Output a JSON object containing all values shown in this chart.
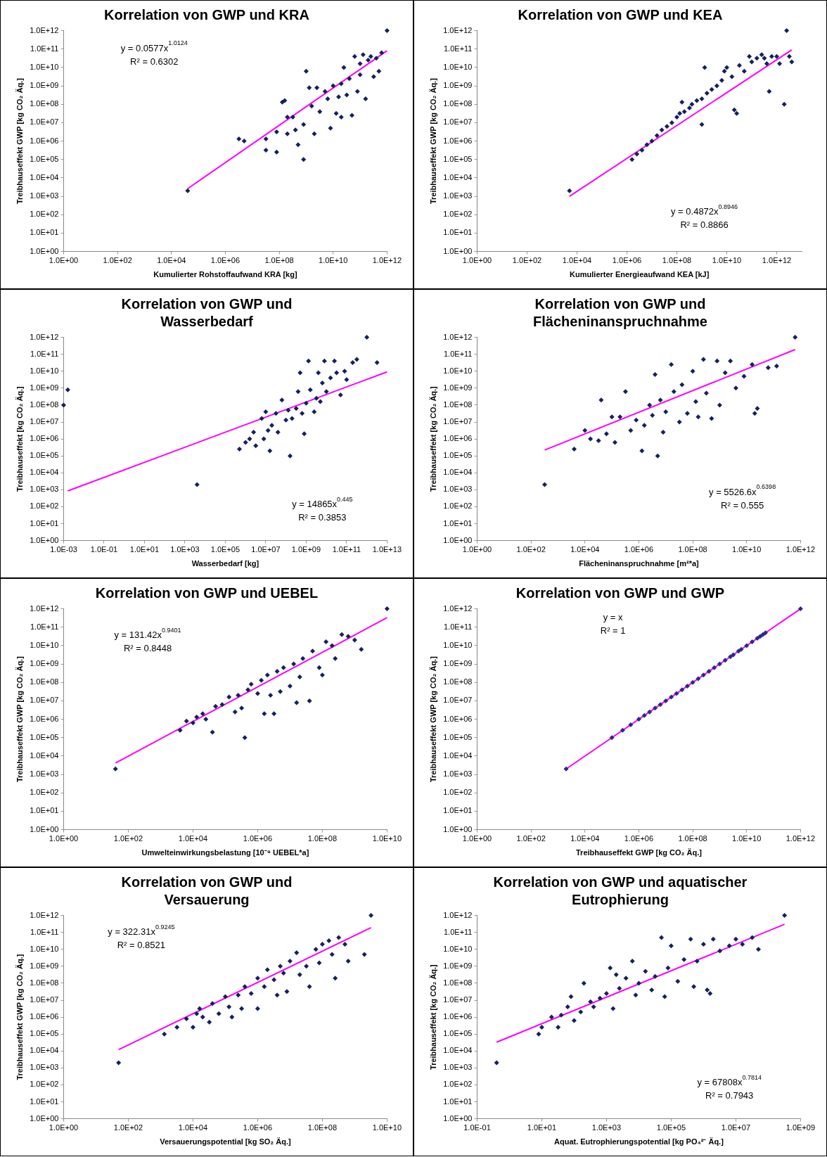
{
  "chart_data": [
    {
      "type": "scatter",
      "title": "Korrelation von GWP und KRA",
      "xlabel": "Kumulierter Rohstoffaufwand KRA [kg]",
      "ylabel": "Treibhauseffekt GWP [kg CO₂ Äq.]",
      "log": "xy",
      "marker": "diamond",
      "xlim": [
        1,
        1000000000000.0
      ],
      "ylim": [
        1,
        1000000000000.0
      ],
      "xticks": [
        {
          "value": 1,
          "label": "1.0E+00"
        },
        {
          "value": 100,
          "label": "1.0E+02"
        },
        {
          "value": 10000.0,
          "label": "1.0E+04"
        },
        {
          "value": 1000000.0,
          "label": "1.0E+06"
        },
        {
          "value": 100000000.0,
          "label": "1.0E+08"
        },
        {
          "value": 10000000000.0,
          "label": "1.0E+10"
        },
        {
          "value": 1000000000000.0,
          "label": "1.0E+12"
        }
      ],
      "yticks": [
        {
          "value": 1,
          "label": "1.0E+00"
        },
        {
          "value": 10,
          "label": "1.0E+01"
        },
        {
          "value": 100,
          "label": "1.0E+02"
        },
        {
          "value": 1000.0,
          "label": "1.0E+03"
        },
        {
          "value": 10000.0,
          "label": "1.0E+04"
        },
        {
          "value": 100000.0,
          "label": "1.0E+05"
        },
        {
          "value": 1000000.0,
          "label": "1.0E+06"
        },
        {
          "value": 10000000.0,
          "label": "1.0E+07"
        },
        {
          "value": 100000000.0,
          "label": "1.0E+08"
        },
        {
          "value": 1000000000.0,
          "label": "1.0E+09"
        },
        {
          "value": 10000000000.0,
          "label": "1.0E+10"
        },
        {
          "value": 100000000000.0,
          "label": "1.0E+11"
        },
        {
          "value": 1000000000000.0,
          "label": "1.0E+12"
        }
      ],
      "annotations": [
        "y = 0.0577x$^{1.0124}$",
        "R² = 0.6302"
      ],
      "series": [
        {
          "type": "scatter",
          "color": "#14215e",
          "x": [
            40000.0,
            3200000.0,
            5000000.0,
            32000000.0,
            32000000.0,
            80000000.0,
            80000000.0,
            130000000.0,
            160000000.0,
            200000000.0,
            200000000.0,
            320000000.0,
            400000000.0,
            500000000.0,
            800000000.0,
            800000000.0,
            1000000000.0,
            1300000000.0,
            1600000000.0,
            2000000000.0,
            2500000000.0,
            3200000000.0,
            5000000000.0,
            6300000000.0,
            8000000000.0,
            10000000000.0,
            13000000000.0,
            16000000000.0,
            20000000000.0,
            20000000000.0,
            25000000000.0,
            32000000000.0,
            40000000000.0,
            50000000000.0,
            63000000000.0,
            80000000000.0,
            100000000000.0,
            100000000000.0,
            130000000000.0,
            160000000000.0,
            200000000000.0,
            250000000000.0,
            320000000000.0,
            400000000000.0,
            500000000000.0,
            630000000000.0,
            1000000000000.0
          ],
          "values": [
            2000.0,
            1300000.0,
            1000000.0,
            320000.0,
            1300000.0,
            250000.0,
            3200000.0,
            130000000.0,
            160000000.0,
            20000000.0,
            2500000.0,
            20000000.0,
            4000000.0,
            630000.0,
            100000.0,
            8000000.0,
            6300000000.0,
            800000000.0,
            80000000.0,
            2500000.0,
            800000000.0,
            40000000.0,
            500000000.0,
            200000000.0,
            5000000.0,
            1000000000.0,
            32000000.0,
            250000000.0,
            1300000000.0,
            20000000.0,
            10000000000.0,
            320000000.0,
            2500000000.0,
            25000000.0,
            40000000000.0,
            500000000.0,
            4000000000.0,
            16000000000.0,
            50000000000.0,
            200000000.0,
            25000000000.0,
            40000000000.0,
            3200000000.0,
            32000000000.0,
            6300000000.0,
            63000000000.0,
            1000000000000.0
          ]
        },
        {
          "type": "line",
          "color": "#ff00ff",
          "marker": "none",
          "x": [
            40000.0,
            1000000000000.0
          ],
          "values": [
            2600.0,
            81000000000.0
          ]
        }
      ]
    },
    {
      "type": "scatter",
      "title": "Korrelation von GWP und KEA",
      "xlabel": "Kumulierter Energieaufwand KEA [kJ]",
      "ylabel": "Treibhauseffekt GWP [kg CO₂ Äq.]",
      "log": "xy",
      "marker": "diamond",
      "xlim": [
        1,
        10000000000000.0
      ],
      "ylim": [
        1,
        1000000000000.0
      ],
      "xticks": [
        {
          "value": 1,
          "label": "1.0E+00"
        },
        {
          "value": 100,
          "label": "1.0E+02"
        },
        {
          "value": 10000.0,
          "label": "1.0E+04"
        },
        {
          "value": 1000000.0,
          "label": "1.0E+06"
        },
        {
          "value": 100000000.0,
          "label": "1.0E+08"
        },
        {
          "value": 10000000000.0,
          "label": "1.0E+10"
        },
        {
          "value": 1000000000000.0,
          "label": "1.0E+12"
        }
      ],
      "yticks": [
        {
          "value": 1,
          "label": "1.0E+00"
        },
        {
          "value": 10,
          "label": "1.0E+01"
        },
        {
          "value": 100,
          "label": "1.0E+02"
        },
        {
          "value": 1000.0,
          "label": "1.0E+03"
        },
        {
          "value": 10000.0,
          "label": "1.0E+04"
        },
        {
          "value": 100000.0,
          "label": "1.0E+05"
        },
        {
          "value": 1000000.0,
          "label": "1.0E+06"
        },
        {
          "value": 10000000.0,
          "label": "1.0E+07"
        },
        {
          "value": 100000000.0,
          "label": "1.0E+08"
        },
        {
          "value": 1000000000.0,
          "label": "1.0E+09"
        },
        {
          "value": 10000000000.0,
          "label": "1.0E+10"
        },
        {
          "value": 100000000000.0,
          "label": "1.0E+11"
        },
        {
          "value": 1000000000000.0,
          "label": "1.0E+12"
        }
      ],
      "annotations": [
        "y = 0.4872x$^{0.8946}$",
        "R² = 0.8866"
      ],
      "series": [
        {
          "type": "scatter",
          "color": "#14215e",
          "x": [
            5000.0,
            1600000.0,
            2500000.0,
            4000000.0,
            6300000.0,
            10000000.0,
            16000000.0,
            25000000.0,
            40000000.0,
            63000000.0,
            100000000.0,
            130000000.0,
            160000000.0,
            200000000.0,
            320000000.0,
            400000000.0,
            630000000.0,
            1000000000.0,
            1000000000.0,
            1300000000.0,
            1600000000.0,
            2500000000.0,
            4000000000.0,
            6300000000.0,
            8000000000.0,
            10000000000.0,
            16000000000.0,
            20000000000.0,
            25000000000.0,
            32000000000.0,
            50000000000.0,
            80000000000.0,
            100000000000.0,
            160000000000.0,
            250000000000.0,
            320000000000.0,
            400000000000.0,
            500000000000.0,
            630000000000.0,
            1000000000000.0,
            1300000000000.0,
            2000000000000.0,
            2500000000000.0,
            3200000000000.0,
            4000000000000.0
          ],
          "values": [
            2000.0,
            100000.0,
            200000.0,
            320000.0,
            630000.0,
            1000000.0,
            2000000.0,
            4000000.0,
            6300000.0,
            10000000.0,
            20000000.0,
            32000000.0,
            130000000.0,
            40000000.0,
            63000000.0,
            100000000.0,
            160000000.0,
            8000000.0,
            200000000.0,
            10000000000.0,
            400000000.0,
            630000000.0,
            1000000000.0,
            2000000000.0,
            6300000000.0,
            10000000000.0,
            3200000000.0,
            50000000.0,
            32000000.0,
            13000000000.0,
            6300000000.0,
            40000000000.0,
            20000000000.0,
            32000000000.0,
            50000000000.0,
            32000000000.0,
            16000000000.0,
            500000000.0,
            40000000000.0,
            40000000000.0,
            16000000000.0,
            100000000.0,
            1000000000000.0,
            40000000000.0,
            20000000000.0
          ]
        },
        {
          "type": "line",
          "color": "#ff00ff",
          "marker": "none",
          "x": [
            5000.0,
            4000000000000.0
          ],
          "values": [
            1000.0,
            91000000000.0
          ]
        }
      ]
    },
    {
      "type": "scatter",
      "title": "Korrelation von GWP und Wasserbedarf",
      "xlabel": "Wasserbedarf [kg]",
      "ylabel": "Treibhauseffekt [kg CO₂ Äq.]",
      "log": "xy",
      "marker": "diamond",
      "xlim": [
        0.001,
        10000000000000.0
      ],
      "ylim": [
        1,
        1000000000000.0
      ],
      "xticks": [
        {
          "value": 0.001,
          "label": "1.0E-03"
        },
        {
          "value": 0.1,
          "label": "1.0E-01"
        },
        {
          "value": 10,
          "label": "1.0E+01"
        },
        {
          "value": 1000.0,
          "label": "1.0E+03"
        },
        {
          "value": 100000.0,
          "label": "1.0E+05"
        },
        {
          "value": 10000000.0,
          "label": "1.0E+07"
        },
        {
          "value": 1000000000.0,
          "label": "1.0E+09"
        },
        {
          "value": 100000000000.0,
          "label": "1.0E+11"
        },
        {
          "value": 10000000000000.0,
          "label": "1.0E+13"
        }
      ],
      "yticks": [
        {
          "value": 1,
          "label": "1.0E+00"
        },
        {
          "value": 10,
          "label": "1.0E+01"
        },
        {
          "value": 100,
          "label": "1.0E+02"
        },
        {
          "value": 1000.0,
          "label": "1.0E+03"
        },
        {
          "value": 10000.0,
          "label": "1.0E+04"
        },
        {
          "value": 100000.0,
          "label": "1.0E+05"
        },
        {
          "value": 1000000.0,
          "label": "1.0E+06"
        },
        {
          "value": 10000000.0,
          "label": "1.0E+07"
        },
        {
          "value": 100000000.0,
          "label": "1.0E+08"
        },
        {
          "value": 1000000000.0,
          "label": "1.0E+09"
        },
        {
          "value": 10000000000.0,
          "label": "1.0E+10"
        },
        {
          "value": 100000000000.0,
          "label": "1.0E+11"
        },
        {
          "value": 1000000000000.0,
          "label": "1.0E+12"
        }
      ],
      "annotations": [
        "y = 14865x$^{0.445}$",
        "R² = 0.3853"
      ],
      "series": [
        {
          "type": "scatter",
          "color": "#14215e",
          "x": [
            0.001,
            0.0016,
            4000.0,
            500000.0,
            1000000.0,
            1600000.0,
            2500000.0,
            3200000.0,
            6300000.0,
            8000000.0,
            10000000.0,
            13000000.0,
            16000000.0,
            20000000.0,
            32000000.0,
            40000000.0,
            63000000.0,
            100000000.0,
            130000000.0,
            160000000.0,
            200000000.0,
            320000000.0,
            400000000.0,
            500000000.0,
            630000000.0,
            800000000.0,
            1000000000.0,
            1300000000.0,
            1600000000.0,
            2500000000.0,
            3200000000.0,
            4000000000.0,
            5000000000.0,
            6300000000.0,
            8000000000.0,
            10000000000.0,
            16000000000.0,
            25000000000.0,
            32000000000.0,
            50000000000.0,
            80000000000.0,
            100000000000.0,
            200000000000.0,
            320000000000.0,
            1000000000000.0,
            3200000000000.0
          ],
          "values": [
            100000000.0,
            800000000.0,
            2000.0,
            250000.0,
            630000.0,
            1000000.0,
            2500000.0,
            400000.0,
            16000000.0,
            1000000.0,
            40000000.0,
            3200000.0,
            200000.0,
            6300000.0,
            32000000.0,
            2500000.0,
            200000000.0,
            13000000.0,
            50000000.0,
            100000.0,
            16000000.0,
            63000000.0,
            630000000.0,
            8000000000.0,
            32000000.0,
            2000000.0,
            130000000.0,
            40000000000.0,
            800000000.0,
            40000000.0,
            250000000.0,
            8000000000.0,
            160000000.0,
            2000000000.0,
            40000000000.0,
            630000000.0,
            4000000000.0,
            40000000000.0,
            8000000000.0,
            400000000.0,
            10000000000.0,
            3200000000.0,
            32000000000.0,
            50000000000.0,
            1000000000000.0,
            32000000000.0
          ]
        },
        {
          "type": "line",
          "color": "#ff00ff",
          "marker": "none",
          "x": [
            0.0016,
            10000000000000.0
          ],
          "values": [
            850,
            9100000000.0
          ]
        }
      ]
    },
    {
      "type": "scatter",
      "title": "Korrelation von GWP und Flächeninanspruchnahme",
      "xlabel": "Flächeninanspruchnahme [m²*a]",
      "ylabel": "Treibhauseffekt [kg CO₂ Äq.]",
      "log": "xy",
      "marker": "diamond",
      "xlim": [
        1,
        1000000000000.0
      ],
      "ylim": [
        1,
        1000000000000.0
      ],
      "xticks": [
        {
          "value": 1,
          "label": "1.0E+00"
        },
        {
          "value": 100,
          "label": "1.0E+02"
        },
        {
          "value": 10000.0,
          "label": "1.0E+04"
        },
        {
          "value": 1000000.0,
          "label": "1.0E+06"
        },
        {
          "value": 100000000.0,
          "label": "1.0E+08"
        },
        {
          "value": 10000000000.0,
          "label": "1.0E+10"
        },
        {
          "value": 1000000000000.0,
          "label": "1.0E+12"
        }
      ],
      "yticks": [
        {
          "value": 1,
          "label": "1.0E+00"
        },
        {
          "value": 10,
          "label": "1.0E+01"
        },
        {
          "value": 100,
          "label": "1.0E+02"
        },
        {
          "value": 1000.0,
          "label": "1.0E+03"
        },
        {
          "value": 10000.0,
          "label": "1.0E+04"
        },
        {
          "value": 100000.0,
          "label": "1.0E+05"
        },
        {
          "value": 1000000.0,
          "label": "1.0E+06"
        },
        {
          "value": 10000000.0,
          "label": "1.0E+07"
        },
        {
          "value": 100000000.0,
          "label": "1.0E+08"
        },
        {
          "value": 1000000000.0,
          "label": "1.0E+09"
        },
        {
          "value": 10000000000.0,
          "label": "1.0E+10"
        },
        {
          "value": 100000000000.0,
          "label": "1.0E+11"
        },
        {
          "value": 1000000000000.0,
          "label": "1.0E+12"
        }
      ],
      "annotations": [
        "y = 5526.6x$^{0.6398}$",
        "R² = 0.555"
      ],
      "series": [
        {
          "type": "scatter",
          "color": "#14215e",
          "x": [
            320,
            4000.0,
            10000.0,
            16000.0,
            32000.0,
            40000.0,
            63000.0,
            100000.0,
            130000.0,
            200000.0,
            320000.0,
            500000.0,
            800000.0,
            1300000.0,
            1600000.0,
            2500000.0,
            3200000.0,
            4000000.0,
            5000000.0,
            6300000.0,
            8000000.0,
            10000000.0,
            16000000.0,
            20000000.0,
            32000000.0,
            40000000.0,
            63000000.0,
            100000000.0,
            130000000.0,
            160000000.0,
            250000000.0,
            320000000.0,
            500000000.0,
            800000000.0,
            1000000000.0,
            1600000000.0,
            2500000000.0,
            4000000000.0,
            8000000000.0,
            16000000000.0,
            20000000000.0,
            25000000000.0,
            63000000000.0,
            130000000000.0,
            630000000000.0
          ],
          "values": [
            2000.0,
            250000.0,
            3200000.0,
            1000000.0,
            800000.0,
            200000000.0,
            2000000.0,
            20000000.0,
            630000.0,
            20000000.0,
            630000000.0,
            3200000.0,
            13000000.0,
            200000.0,
            6300000.0,
            100000000.0,
            25000000.0,
            6300000000.0,
            100000.0,
            200000000.0,
            2500000.0,
            40000000.0,
            25000000000.0,
            630000000.0,
            10000000.0,
            1600000000.0,
            32000000.0,
            10000000000.0,
            160000000.0,
            20000000.0,
            50000000000.0,
            500000000.0,
            16000000.0,
            40000000000.0,
            100000000.0,
            8000000000.0,
            40000000000.0,
            1000000000.0,
            5000000000.0,
            25000000000.0,
            32000000.0,
            63000000.0,
            16000000000.0,
            20000000000.0,
            1000000000000.0
          ]
        },
        {
          "type": "line",
          "color": "#ff00ff",
          "marker": "none",
          "x": [
            320,
            630000000000.0
          ],
          "values": [
            220000.0,
            190000000000.0
          ]
        }
      ]
    },
    {
      "type": "scatter",
      "title": "Korrelation von GWP und UEBEL",
      "xlabel": "Umwelteinwirkungsbelastung [10⁻⁹ UEBEL*a]",
      "ylabel": "Treibhauseffekt GWP [kg CO₂ Äq.]",
      "log": "xy",
      "marker": "diamond",
      "xlim": [
        1,
        10000000000.0
      ],
      "ylim": [
        1,
        1000000000000.0
      ],
      "xticks": [
        {
          "value": 1,
          "label": "1.0E+00"
        },
        {
          "value": 100,
          "label": "1.0E+02"
        },
        {
          "value": 10000.0,
          "label": "1.0E+04"
        },
        {
          "value": 1000000.0,
          "label": "1.0E+06"
        },
        {
          "value": 100000000.0,
          "label": "1.0E+08"
        },
        {
          "value": 10000000000.0,
          "label": "1.0E+10"
        }
      ],
      "yticks": [
        {
          "value": 1,
          "label": "1.0E+00"
        },
        {
          "value": 10,
          "label": "1.0E+01"
        },
        {
          "value": 100,
          "label": "1.0E+02"
        },
        {
          "value": 1000.0,
          "label": "1.0E+03"
        },
        {
          "value": 10000.0,
          "label": "1.0E+04"
        },
        {
          "value": 100000.0,
          "label": "1.0E+05"
        },
        {
          "value": 1000000.0,
          "label": "1.0E+06"
        },
        {
          "value": 10000000.0,
          "label": "1.0E+07"
        },
        {
          "value": 100000000.0,
          "label": "1.0E+08"
        },
        {
          "value": 1000000000.0,
          "label": "1.0E+09"
        },
        {
          "value": 10000000000.0,
          "label": "1.0E+10"
        },
        {
          "value": 100000000000.0,
          "label": "1.0E+11"
        },
        {
          "value": 1000000000000.0,
          "label": "1.0E+12"
        }
      ],
      "annotations": [
        "y = 131.42x$^{0.9401}$",
        "R² = 0.8448"
      ],
      "series": [
        {
          "type": "scatter",
          "color": "#14215e",
          "x": [
            40,
            4000.0,
            6300.0,
            10000.0,
            13000.0,
            20000.0,
            25000.0,
            40000.0,
            50000.0,
            80000.0,
            130000.0,
            200000.0,
            250000.0,
            320000.0,
            400000.0,
            500000.0,
            630000.0,
            1000000.0,
            1300000.0,
            1600000.0,
            2000000.0,
            2500000.0,
            3200000.0,
            4000000.0,
            5000000.0,
            6300000.0,
            10000000.0,
            13000000.0,
            16000000.0,
            20000000.0,
            25000000.0,
            40000000.0,
            50000000.0,
            80000000.0,
            100000000.0,
            130000000.0,
            200000000.0,
            250000000.0,
            400000000.0,
            630000000.0,
            1000000000.0,
            1600000000.0,
            10000000000.0
          ],
          "values": [
            2000.0,
            250000.0,
            800000.0,
            630000.0,
            1300000.0,
            2000000.0,
            1000000.0,
            200000.0,
            5000000.0,
            6300000.0,
            16000000.0,
            2500000.0,
            20000000.0,
            4000000.0,
            100000.0,
            40000000.0,
            80000000.0,
            25000000.0,
            130000000.0,
            2000000.0,
            250000000.0,
            20000000.0,
            2000000.0,
            400000000.0,
            32000000.0,
            630000000.0,
            63000000.0,
            1000000000.0,
            8000000.0,
            200000000.0,
            2000000000.0,
            10000000.0,
            5000000000.0,
            630000000.0,
            250000000.0,
            16000000000.0,
            10000000000.0,
            2000000000.0,
            40000000000.0,
            32000000000.0,
            20000000000.0,
            6300000000.0,
            1000000000000.0
          ]
        },
        {
          "type": "line",
          "color": "#ff00ff",
          "marker": "none",
          "x": [
            40,
            10000000000.0
          ],
          "values": [
            4200.0,
            330000000000.0
          ]
        }
      ]
    },
    {
      "type": "scatter",
      "title": "Korrelation von GWP und GWP",
      "xlabel": "Treibhauseffekt GWP [kg CO₂ Äq.]",
      "ylabel": "Treibhauseffekt GWP [kg CO₂ Äq.]",
      "log": "xy",
      "marker": "diamond",
      "xlim": [
        1,
        1000000000000.0
      ],
      "ylim": [
        1,
        1000000000000.0
      ],
      "xticks": [
        {
          "value": 1,
          "label": "1.0E+00"
        },
        {
          "value": 100,
          "label": "1.0E+02"
        },
        {
          "value": 10000.0,
          "label": "1.0E+04"
        },
        {
          "value": 1000000.0,
          "label": "1.0E+06"
        },
        {
          "value": 100000000.0,
          "label": "1.0E+08"
        },
        {
          "value": 10000000000.0,
          "label": "1.0E+10"
        },
        {
          "value": 1000000000000.0,
          "label": "1.0E+12"
        }
      ],
      "yticks": [
        {
          "value": 1,
          "label": "1.0E+00"
        },
        {
          "value": 10,
          "label": "1.0E+01"
        },
        {
          "value": 100,
          "label": "1.0E+02"
        },
        {
          "value": 1000.0,
          "label": "1.0E+03"
        },
        {
          "value": 10000.0,
          "label": "1.0E+04"
        },
        {
          "value": 100000.0,
          "label": "1.0E+05"
        },
        {
          "value": 1000000.0,
          "label": "1.0E+06"
        },
        {
          "value": 10000000.0,
          "label": "1.0E+07"
        },
        {
          "value": 100000000.0,
          "label": "1.0E+08"
        },
        {
          "value": 1000000000.0,
          "label": "1.0E+09"
        },
        {
          "value": 10000000000.0,
          "label": "1.0E+10"
        },
        {
          "value": 100000000000.0,
          "label": "1.0E+11"
        },
        {
          "value": 1000000000000.0,
          "label": "1.0E+12"
        }
      ],
      "annotations": [
        "y = x",
        "R² = 1"
      ],
      "series": [
        {
          "type": "scatter",
          "color": "#2a2a8c",
          "x": [
            2000.0,
            100000.0,
            250000.0,
            500000.0,
            1000000.0,
            1600000.0,
            2500000.0,
            4000000.0,
            6300000.0,
            10000000.0,
            16000000.0,
            25000000.0,
            40000000.0,
            63000000.0,
            100000000.0,
            160000000.0,
            250000000.0,
            400000000.0,
            630000000.0,
            1000000000.0,
            1600000000.0,
            2500000000.0,
            3200000000.0,
            5000000000.0,
            6300000000.0,
            10000000000.0,
            16000000000.0,
            25000000000.0,
            32000000000.0,
            40000000000.0,
            50000000000.0,
            1000000000000.0
          ],
          "values": [
            2000.0,
            100000.0,
            250000.0,
            500000.0,
            1000000.0,
            1600000.0,
            2500000.0,
            4000000.0,
            6300000.0,
            10000000.0,
            16000000.0,
            25000000.0,
            40000000.0,
            63000000.0,
            100000000.0,
            160000000.0,
            250000000.0,
            400000000.0,
            630000000.0,
            1000000000.0,
            1600000000.0,
            2500000000.0,
            3200000000.0,
            5000000000.0,
            6300000000.0,
            10000000000.0,
            16000000000.0,
            25000000000.0,
            32000000000.0,
            40000000000.0,
            50000000000.0,
            1000000000000.0
          ]
        },
        {
          "type": "line",
          "color": "#ff00ff",
          "marker": "none",
          "x": [
            2000.0,
            1000000000000.0
          ],
          "values": [
            2000.0,
            1000000000000.0
          ]
        }
      ]
    },
    {
      "type": "scatter",
      "title": "Korrelation von GWP und Versauerung",
      "xlabel": "Versauerungspotential [kg SO₂ Äq.]",
      "ylabel": "Treibhauseffekt GWP [kg CO₂ Äq.]",
      "log": "xy",
      "marker": "diamond",
      "xlim": [
        1,
        10000000000.0
      ],
      "ylim": [
        1,
        1000000000000.0
      ],
      "xticks": [
        {
          "value": 1,
          "label": "1.0E+00"
        },
        {
          "value": 100,
          "label": "1.0E+02"
        },
        {
          "value": 10000.0,
          "label": "1.0E+04"
        },
        {
          "value": 1000000.0,
          "label": "1.0E+06"
        },
        {
          "value": 100000000.0,
          "label": "1.0E+08"
        },
        {
          "value": 10000000000.0,
          "label": "1.0E+10"
        }
      ],
      "yticks": [
        {
          "value": 1,
          "label": "1.0E+00"
        },
        {
          "value": 10,
          "label": "1.0E+01"
        },
        {
          "value": 100,
          "label": "1.0E+02"
        },
        {
          "value": 1000.0,
          "label": "1.0E+03"
        },
        {
          "value": 10000.0,
          "label": "1.0E+04"
        },
        {
          "value": 100000.0,
          "label": "1.0E+05"
        },
        {
          "value": 1000000.0,
          "label": "1.0E+06"
        },
        {
          "value": 10000000.0,
          "label": "1.0E+07"
        },
        {
          "value": 100000000.0,
          "label": "1.0E+08"
        },
        {
          "value": 1000000000.0,
          "label": "1.0E+09"
        },
        {
          "value": 10000000000.0,
          "label": "1.0E+10"
        },
        {
          "value": 100000000000.0,
          "label": "1.0E+11"
        },
        {
          "value": 1000000000000.0,
          "label": "1.0E+12"
        }
      ],
      "annotations": [
        "y = 322.31x$^{0.9245}$",
        "R² = 0.8521"
      ],
      "series": [
        {
          "type": "scatter",
          "color": "#14215e",
          "x": [
            50,
            1300.0,
            3200.0,
            6300.0,
            10000.0,
            13000.0,
            16000.0,
            20000.0,
            32000.0,
            40000.0,
            63000.0,
            100000.0,
            130000.0,
            160000.0,
            250000.0,
            320000.0,
            400000.0,
            630000.0,
            1000000.0,
            1000000.0,
            1600000.0,
            2000000.0,
            3200000.0,
            4000000.0,
            5000000.0,
            6300000.0,
            8000000.0,
            10000000.0,
            16000000.0,
            20000000.0,
            32000000.0,
            40000000.0,
            63000000.0,
            80000000.0,
            100000000.0,
            160000000.0,
            200000000.0,
            250000000.0,
            320000000.0,
            500000000.0,
            630000000.0,
            2000000000.0,
            3200000000.0
          ],
          "values": [
            2000.0,
            100000.0,
            250000.0,
            800000.0,
            250000.0,
            1600000.0,
            3200000.0,
            1000000.0,
            500000.0,
            6300000.0,
            1600000.0,
            16000000.0,
            4000000.0,
            1000000.0,
            20000000.0,
            3200000.0,
            63000000.0,
            25000000.0,
            3200000.0,
            200000000.0,
            63000000.0,
            630000000.0,
            160000000.0,
            20000000.0,
            1000000000.0,
            400000000.0,
            32000000.0,
            2000000000.0,
            6300000000.0,
            320000000.0,
            1000000000.0,
            63000000.0,
            10000000000.0,
            1600000000.0,
            20000000000.0,
            32000000000.0,
            5000000000.0,
            200000000.0,
            50000000000.0,
            20000000000.0,
            2000000000.0,
            5000000000.0,
            1000000000000.0
          ]
        },
        {
          "type": "line",
          "color": "#ff00ff",
          "marker": "none",
          "x": [
            50,
            3200000000.0
          ],
          "values": [
            12000.0,
            190000000000.0
          ]
        }
      ]
    },
    {
      "type": "scatter",
      "title": "Korrelation von GWP und aquatischer Eutrophierung",
      "xlabel": "Aquat. Eutrophierungspotential [kg PO₄²⁻ Äq.]",
      "ylabel": "Treibhauseffekt [kg CO₂ Äq.]",
      "log": "xy",
      "marker": "diamond",
      "xlim": [
        0.1,
        1000000000.0
      ],
      "ylim": [
        1,
        1000000000000.0
      ],
      "xticks": [
        {
          "value": 0.1,
          "label": "1.0E-01"
        },
        {
          "value": 10,
          "label": "1.0E+01"
        },
        {
          "value": 1000.0,
          "label": "1.0E+03"
        },
        {
          "value": 100000.0,
          "label": "1.0E+05"
        },
        {
          "value": 10000000.0,
          "label": "1.0E+07"
        },
        {
          "value": 1000000000.0,
          "label": "1.0E+09"
        }
      ],
      "yticks": [
        {
          "value": 1,
          "label": "1.0E+00"
        },
        {
          "value": 10,
          "label": "1.0E+01"
        },
        {
          "value": 100,
          "label": "1.0E+02"
        },
        {
          "value": 1000.0,
          "label": "1.0E+03"
        },
        {
          "value": 10000.0,
          "label": "1.0E+04"
        },
        {
          "value": 100000.0,
          "label": "1.0E+05"
        },
        {
          "value": 1000000.0,
          "label": "1.0E+06"
        },
        {
          "value": 10000000.0,
          "label": "1.0E+07"
        },
        {
          "value": 100000000.0,
          "label": "1.0E+08"
        },
        {
          "value": 1000000000.0,
          "label": "1.0E+09"
        },
        {
          "value": 10000000000.0,
          "label": "1.0E+10"
        },
        {
          "value": 100000000000.0,
          "label": "1.0E+11"
        },
        {
          "value": 1000000000000.0,
          "label": "1.0E+12"
        }
      ],
      "annotations": [
        "y = 67808x$^{0.7814}$",
        "R² = 0.7943"
      ],
      "series": [
        {
          "type": "scatter",
          "color": "#14215e",
          "x": [
            0.4,
            8,
            10,
            20,
            32,
            40,
            63,
            80,
            100,
            160,
            200,
            320,
            400,
            630,
            1000.0,
            1300.0,
            1600.0,
            2000.0,
            2500.0,
            4000.0,
            6300.0,
            8000.0,
            10000.0,
            16000.0,
            25000.0,
            32000.0,
            50000.0,
            63000.0,
            80000.0,
            100000.0,
            160000.0,
            250000.0,
            400000.0,
            500000.0,
            630000.0,
            1000000.0,
            1300000.0,
            1600000.0,
            2000000.0,
            3200000.0,
            6300000.0,
            10000000.0,
            16000000.0,
            32000000.0,
            50000000.0,
            320000000.0
          ],
          "values": [
            2000.0,
            100000.0,
            250000.0,
            1000000.0,
            250000.0,
            1300000.0,
            4000000.0,
            16000000.0,
            630000.0,
            2000000.0,
            100000000.0,
            8000000.0,
            4000000.0,
            13000000.0,
            25000000.0,
            800000000.0,
            3200000.0,
            320000000.0,
            50000000.0,
            200000000.0,
            2000000000.0,
            20000000.0,
            100000000.0,
            500000000.0,
            40000000.0,
            250000000.0,
            50000000000.0,
            16000000.0,
            800000000.0,
            16000000000.0,
            130000000.0,
            2500000000.0,
            40000000000.0,
            63000000.0,
            2000000000.0,
            20000000000.0,
            40000000.0,
            25000000.0,
            40000000000.0,
            8000000000.0,
            16000000000.0,
            40000000000.0,
            20000000000.0,
            50000000000.0,
            10000000000.0,
            1000000000000.0
          ]
        },
        {
          "type": "line",
          "color": "#ff00ff",
          "marker": "none",
          "x": [
            0.4,
            320000000.0
          ],
          "values": [
            33000.0,
            300000000000.0
          ]
        }
      ]
    }
  ]
}
